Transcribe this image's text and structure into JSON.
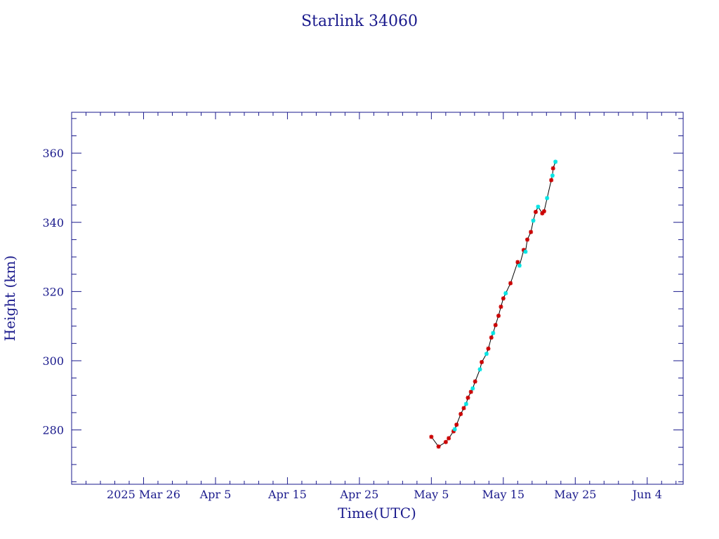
{
  "chart_data": {
    "type": "scatter",
    "title": "Starlink 34060",
    "xlabel": "Time(UTC)",
    "ylabel": "Height (km)",
    "x_tick_labels": [
      "2025 Mar 26",
      "Apr  5",
      "Apr 15",
      "Apr 25",
      "May  5",
      "May 15",
      "May 25",
      "Jun  4"
    ],
    "y_ticks": [
      280,
      300,
      320,
      340,
      360
    ],
    "xlim": [
      "2025-03-16",
      "2025-06-09"
    ],
    "ylim": [
      264.3,
      371.8
    ],
    "grid": false,
    "legend": "none",
    "line_color": "#000000",
    "colors": {
      "red": "#cc0000",
      "cyan": "#00e5e5",
      "axis": "#1a1a8c"
    },
    "series": [
      {
        "color": "red",
        "points": [
          [
            "2025-05-05 00:00",
            278.0
          ],
          [
            "2025-05-06 00:00",
            275.2
          ],
          [
            "2025-05-07 00:00",
            276.5
          ],
          [
            "2025-05-07 10:00",
            277.6
          ],
          [
            "2025-05-08 02:00",
            279.6
          ],
          [
            "2025-05-08 12:00",
            281.5
          ],
          [
            "2025-05-09 02:00",
            284.6
          ],
          [
            "2025-05-09 12:00",
            286.3
          ],
          [
            "2025-05-10 02:00",
            289.3
          ],
          [
            "2025-05-10 12:00",
            291.0
          ],
          [
            "2025-05-11 02:00",
            294.0
          ],
          [
            "2025-05-12 00:00",
            299.6
          ],
          [
            "2025-05-12 22:00",
            303.5
          ],
          [
            "2025-05-13 08:00",
            306.7
          ],
          [
            "2025-05-13 22:00",
            310.3
          ],
          [
            "2025-05-14 08:00",
            313.0
          ],
          [
            "2025-05-14 16:00",
            315.6
          ],
          [
            "2025-05-15 00:00",
            318.0
          ],
          [
            "2025-05-16 00:00",
            322.4
          ],
          [
            "2025-05-17 00:00",
            328.5
          ],
          [
            "2025-05-17 20:00",
            332.0
          ],
          [
            "2025-05-18 08:00",
            335.0
          ],
          [
            "2025-05-18 20:00",
            337.2
          ],
          [
            "2025-05-19 12:00",
            343.0
          ],
          [
            "2025-05-20 10:00",
            342.6
          ],
          [
            "2025-05-20 16:00",
            343.2
          ],
          [
            "2025-05-21 16:00",
            352.2
          ],
          [
            "2025-05-21 22:00",
            355.6
          ]
        ]
      },
      {
        "color": "cyan",
        "points": [
          [
            "2025-05-08 06:00",
            280.2
          ],
          [
            "2025-05-09 20:00",
            287.5
          ],
          [
            "2025-05-10 18:00",
            292.0
          ],
          [
            "2025-05-11 18:00",
            297.5
          ],
          [
            "2025-05-12 16:00",
            302.0
          ],
          [
            "2025-05-13 14:00",
            308.0
          ],
          [
            "2025-05-15 08:00",
            319.5
          ],
          [
            "2025-05-17 06:00",
            327.5
          ],
          [
            "2025-05-18 02:00",
            331.5
          ],
          [
            "2025-05-19 04:00",
            340.5
          ],
          [
            "2025-05-19 20:00",
            344.5
          ],
          [
            "2025-05-21 02:00",
            347.0
          ],
          [
            "2025-05-21 20:00",
            353.5
          ],
          [
            "2025-05-22 06:00",
            357.5
          ]
        ]
      }
    ]
  }
}
